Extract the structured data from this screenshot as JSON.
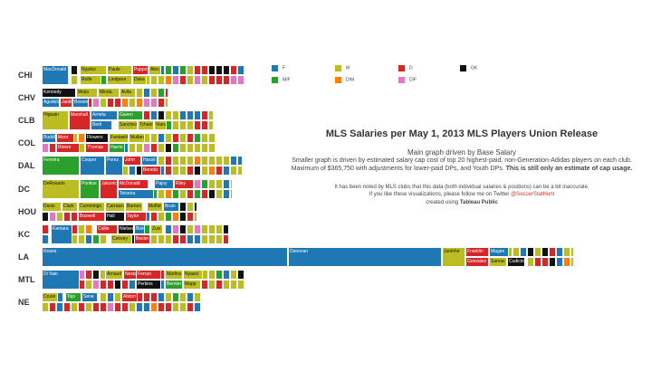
{
  "header": {
    "title": "MLS Salaries per May 1, 2013 MLS Players Union Release",
    "subtitle": "Main graph driven by Base Salary",
    "desc_line1": "Smaller graph is driven by estimated salary cap cost of top 20 highest-paid, non-Generation-Adidas players on each club.",
    "desc_line2_plain": "Maximum of $365,750 with adjustments for lower-paid DPs, and Youth DPs. ",
    "desc_line2_bold": "This is still only an estimate of cap usage.",
    "note_line1": "It has been noted by MLS clubs that this data (both individual salaries & positions) can be a bit inaccurate.",
    "note_line2_prefix": "If you like these visualizations, please follow me on Twitter ",
    "note_line2_handle": "@SoccerStatHunt",
    "note_line3_prefix": "created using ",
    "note_line3_bold": "Tableau Public"
  },
  "colors": {
    "F": "#1f77b4",
    "M": "#bcbd22",
    "D": "#d62728",
    "GK": "#111111",
    "MF": "#2ca02c",
    "DM": "#ff7f0e",
    "DF": "#e377c2"
  },
  "legend": [
    {
      "code": "F",
      "label": "F"
    },
    {
      "code": "M",
      "label": "M"
    },
    {
      "code": "D",
      "label": "D"
    },
    {
      "code": "GK",
      "label": "GK"
    },
    {
      "code": "MF",
      "label": "M/F"
    },
    {
      "code": "DM",
      "label": "D/M"
    },
    {
      "code": "DF",
      "label": "D/F"
    }
  ],
  "chart_data": {
    "type": "treemap",
    "teams": [
      {
        "team": "CHI",
        "labeled_players": [
          {
            "name": "MacDonald",
            "pos": "F"
          },
          {
            "name": "Nyarko",
            "pos": "M"
          },
          {
            "name": "Rolfe",
            "pos": "M"
          },
          {
            "name": "Paule",
            "pos": "M"
          },
          {
            "name": "Lindpere",
            "pos": "M"
          },
          {
            "name": "Puppo",
            "pos": "D"
          },
          {
            "name": "Duka",
            "pos": "M"
          },
          {
            "name": "Alex",
            "pos": "M"
          }
        ]
      },
      {
        "team": "CHV",
        "labeled_players": [
          {
            "name": "Kennedy",
            "pos": "GK"
          },
          {
            "name": "Mejia",
            "pos": "M"
          },
          {
            "name": "Minda",
            "pos": "M"
          },
          {
            "name": "Avila",
            "pos": "M"
          },
          {
            "name": "Agudelo",
            "pos": "F"
          },
          {
            "name": "Jaidic",
            "pos": "D"
          },
          {
            "name": "Bowen",
            "pos": "F"
          }
        ]
      },
      {
        "team": "CLB",
        "labeled_players": [
          {
            "name": "Higuain",
            "pos": "M"
          },
          {
            "name": "Marshall",
            "pos": "D"
          },
          {
            "name": "Arrieta",
            "pos": "F"
          },
          {
            "name": "Gaven",
            "pos": "MF"
          },
          {
            "name": "Berti",
            "pos": "F"
          },
          {
            "name": "Sanchez",
            "pos": "M"
          },
          {
            "name": "Tchani",
            "pos": "M"
          },
          {
            "name": "Viana",
            "pos": "M"
          }
        ]
      },
      {
        "team": "COL",
        "labeled_players": [
          {
            "name": "Buddle",
            "pos": "F"
          },
          {
            "name": "Moor",
            "pos": "D"
          },
          {
            "name": "Rivero",
            "pos": "D"
          },
          {
            "name": "Thomas",
            "pos": "D"
          },
          {
            "name": "Flowers",
            "pos": "GK"
          },
          {
            "name": "Harris",
            "pos": "MF"
          },
          {
            "name": "Fantastiko",
            "pos": "M"
          },
          {
            "name": "Mullan",
            "pos": "M"
          }
        ]
      },
      {
        "team": "DAL",
        "labeled_players": [
          {
            "name": "Ferreira",
            "pos": "MF"
          },
          {
            "name": "Cooper",
            "pos": "F"
          },
          {
            "name": "Perez",
            "pos": "F"
          },
          {
            "name": "John",
            "pos": "D"
          },
          {
            "name": "Hassli",
            "pos": "F"
          },
          {
            "name": "Benetiz",
            "pos": "D"
          }
        ]
      },
      {
        "team": "DC",
        "labeled_players": [
          {
            "name": "DeRosario",
            "pos": "M"
          },
          {
            "name": "Pontius",
            "pos": "MF"
          },
          {
            "name": "Jakovic",
            "pos": "D"
          },
          {
            "name": "McDonald",
            "pos": "D"
          },
          {
            "name": "Teixeira",
            "pos": "F"
          },
          {
            "name": "Pajoy",
            "pos": "F"
          },
          {
            "name": "Riley",
            "pos": "D"
          }
        ]
      },
      {
        "team": "HOU",
        "labeled_players": [
          {
            "name": "Davis",
            "pos": "M"
          },
          {
            "name": "Clark",
            "pos": "M"
          },
          {
            "name": "Cummings",
            "pos": "M"
          },
          {
            "name": "Boswell",
            "pos": "D"
          },
          {
            "name": "Carrasco",
            "pos": "M"
          },
          {
            "name": "Hall",
            "pos": "GK"
          },
          {
            "name": "Barnes",
            "pos": "M"
          },
          {
            "name": "Taylor",
            "pos": "D"
          },
          {
            "name": "Moffat",
            "pos": "M"
          },
          {
            "name": "Bruin",
            "pos": "F"
          }
        ]
      },
      {
        "team": "KC",
        "labeled_players": [
          {
            "name": "Kamara",
            "pos": "F"
          },
          {
            "name": "Collin",
            "pos": "D"
          },
          {
            "name": "Nielsen",
            "pos": "GK"
          },
          {
            "name": "Convey",
            "pos": "M"
          },
          {
            "name": "Bieler",
            "pos": "F"
          },
          {
            "name": "Besler",
            "pos": "D"
          },
          {
            "name": "Zusi",
            "pos": "M"
          }
        ]
      },
      {
        "team": "LA",
        "labeled_players": [
          {
            "name": "Keane",
            "pos": "F"
          },
          {
            "name": "Donovan",
            "pos": "F"
          },
          {
            "name": "Juninho",
            "pos": "M"
          },
          {
            "name": "Franklin",
            "pos": "D"
          },
          {
            "name": "Gonzalez",
            "pos": "D"
          },
          {
            "name": "Magee",
            "pos": "F"
          },
          {
            "name": "Sarvas",
            "pos": "M"
          },
          {
            "name": "Cudicini",
            "pos": "GK"
          }
        ]
      },
      {
        "team": "MTL",
        "labeled_players": [
          {
            "name": "Di Vaio",
            "pos": "F"
          },
          {
            "name": "Arnaud",
            "pos": "M"
          },
          {
            "name": "Nesta",
            "pos": "D"
          },
          {
            "name": "Ferrari",
            "pos": "D"
          },
          {
            "name": "Perkins",
            "pos": "GK"
          },
          {
            "name": "Mapp",
            "pos": "M"
          },
          {
            "name": "Martins",
            "pos": "M"
          },
          {
            "name": "Bernier",
            "pos": "MF"
          },
          {
            "name": "Nyassi",
            "pos": "M"
          }
        ]
      },
      {
        "team": "NE",
        "labeled_players": [
          {
            "name": "Cruse",
            "pos": "M"
          },
          {
            "name": "Tojo",
            "pos": "MF"
          },
          {
            "name": "Sene",
            "pos": "F"
          },
          {
            "name": "Alston",
            "pos": "D"
          }
        ]
      }
    ]
  }
}
